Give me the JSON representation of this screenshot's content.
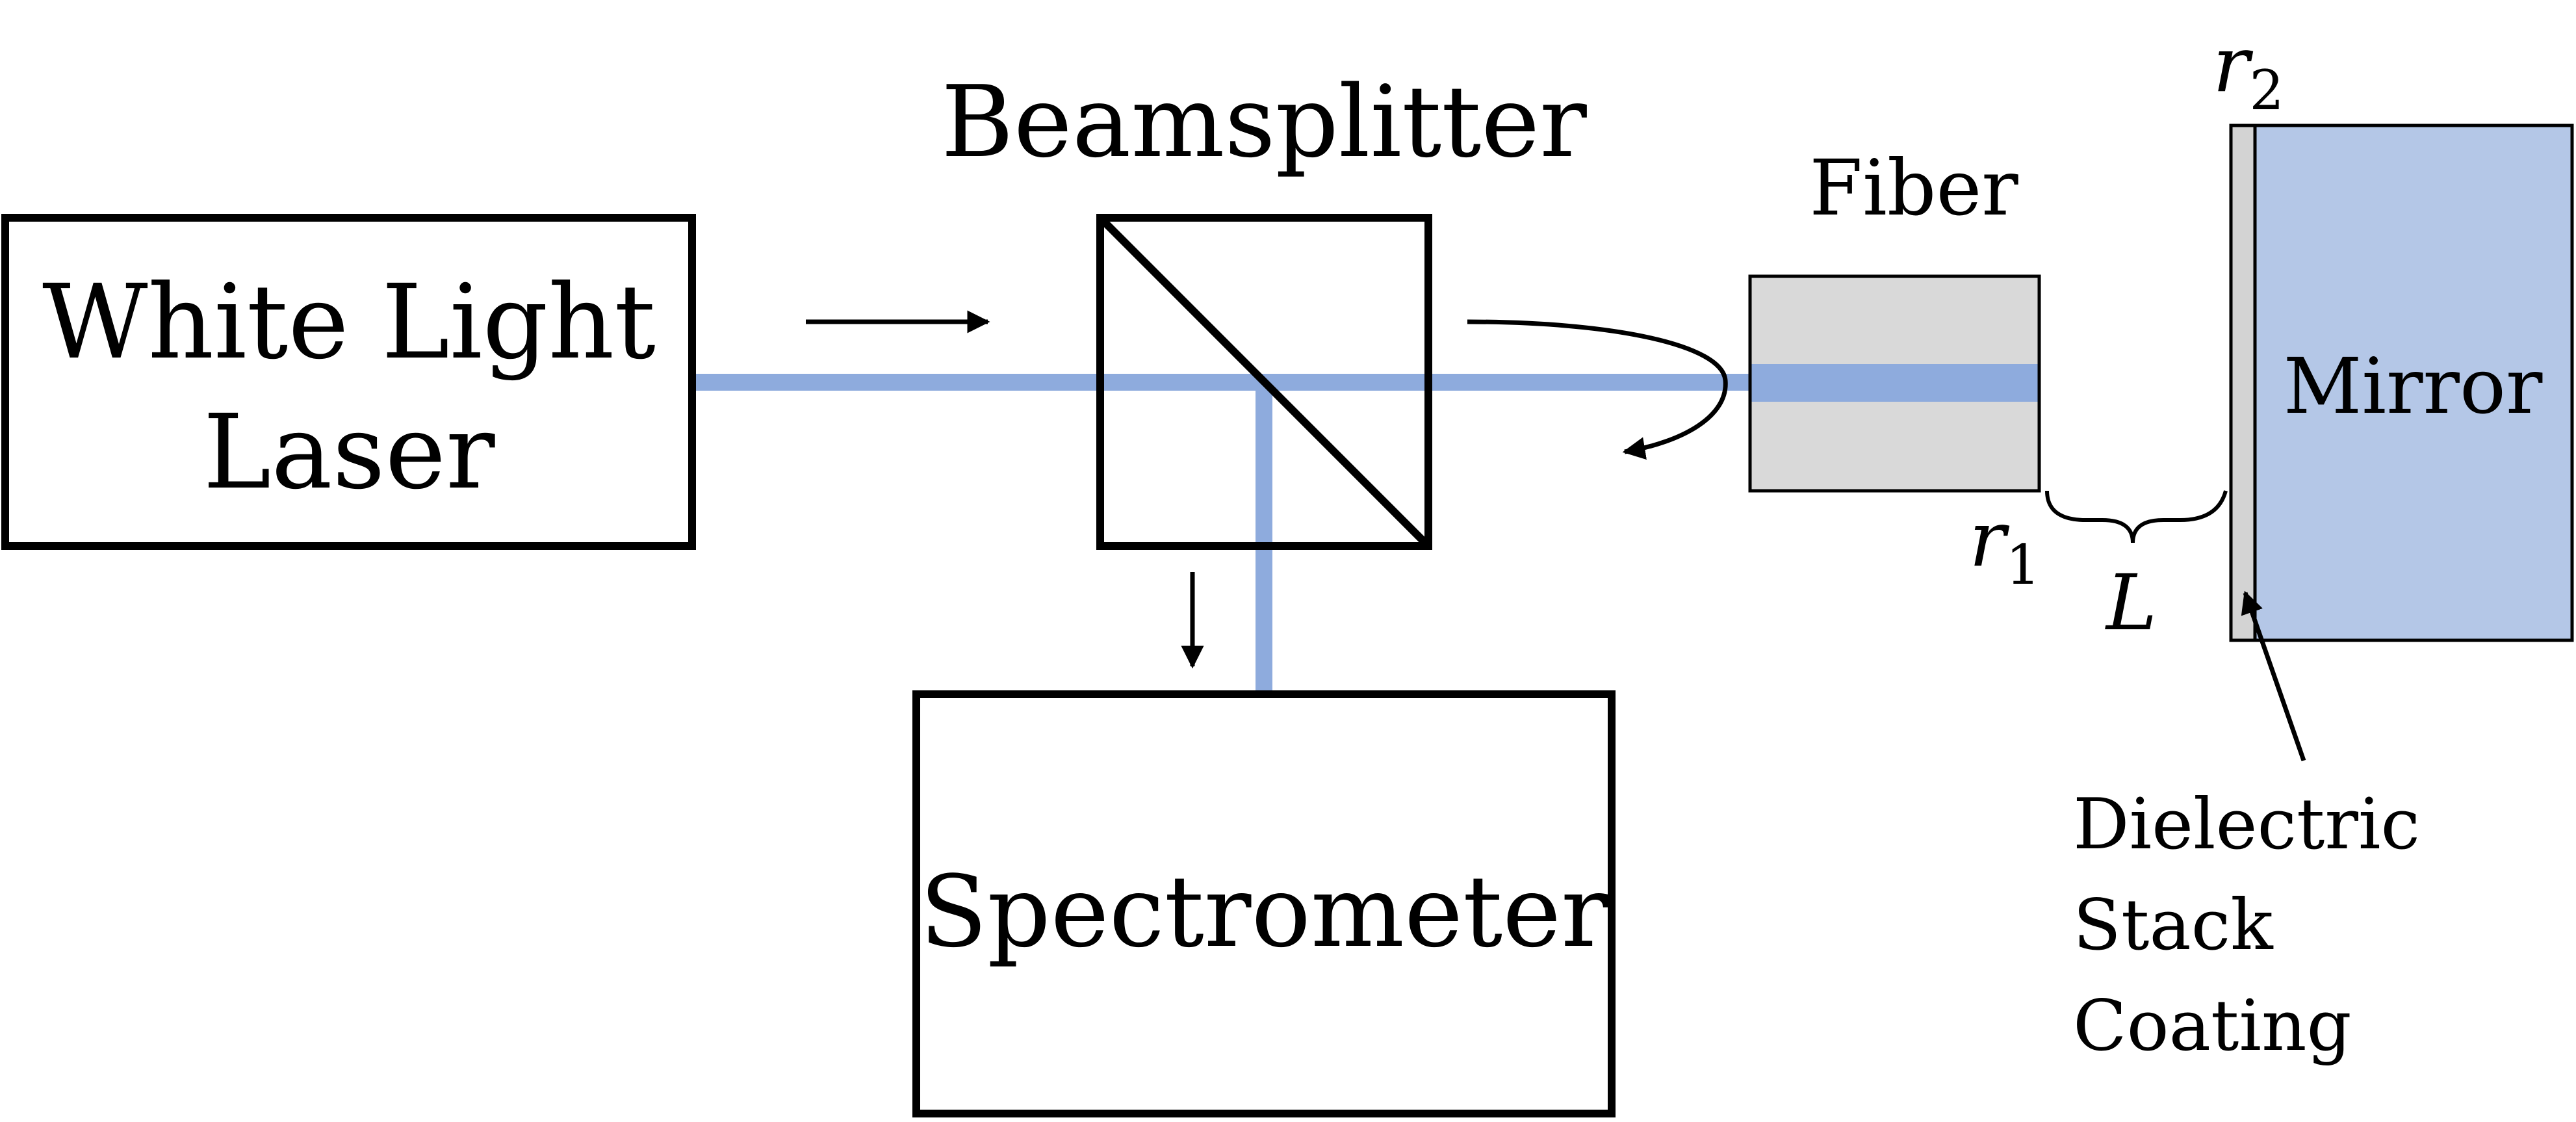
{
  "colors": {
    "beam": "#8eabdd",
    "mirror_fill": "#b4c7e7",
    "fiber_fill": "#d9d9d9",
    "coating_fill": "#d3d3d3",
    "outline": "#000000"
  },
  "components": {
    "laser": {
      "line1": "White Light",
      "line2": "Laser"
    },
    "beamsplitter": {
      "label": "Beamsplitter"
    },
    "fiber": {
      "label": "Fiber"
    },
    "mirror": {
      "label": "Mirror"
    },
    "spectrometer": {
      "label": "Spectrometer"
    },
    "coating": {
      "line1": "Dielectric",
      "line2": "Stack",
      "line3": "Coating"
    }
  },
  "symbols": {
    "r1": {
      "base": "r",
      "sub": "1"
    },
    "r2": {
      "base": "r",
      "sub": "2"
    },
    "L": "L"
  }
}
